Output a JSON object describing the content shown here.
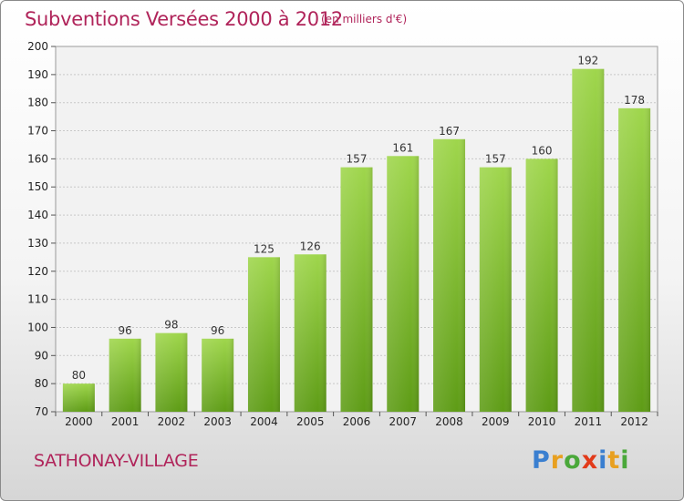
{
  "header": {
    "title": "Subventions Versées 2000 à 2012",
    "unit": "(en milliers d'€)"
  },
  "footer": {
    "city": "SATHONAY-VILLAGE",
    "brand_letters": [
      "P",
      "r",
      "o",
      "x",
      "i",
      "t",
      "i"
    ],
    "brand_colors": [
      "#3a7fd0",
      "#e8a020",
      "#4aa83a",
      "#e23a1a",
      "#3a7fd0",
      "#e8a020",
      "#4aa83a"
    ]
  },
  "colors": {
    "bar_light": "#9fd64c",
    "bar_dark": "#5e9c16",
    "title": "#b0245a",
    "grid": "#c8c8c8"
  },
  "chart_data": {
    "type": "bar",
    "title": "Subventions Versées 2000 à 2012",
    "subtitle": "(en milliers d'€)",
    "categories": [
      "2000",
      "2001",
      "2002",
      "2003",
      "2004",
      "2005",
      "2006",
      "2007",
      "2008",
      "2009",
      "2010",
      "2011",
      "2012"
    ],
    "values": [
      80,
      96,
      98,
      96,
      125,
      126,
      157,
      161,
      167,
      157,
      160,
      192,
      178
    ],
    "data_labels": [
      "80",
      "96",
      "98",
      "96",
      "125",
      "126",
      "157",
      "161",
      "167",
      "157",
      "160",
      "192",
      "178"
    ],
    "ylim": [
      70,
      200
    ],
    "yticks": [
      70,
      80,
      90,
      100,
      110,
      120,
      130,
      140,
      150,
      160,
      170,
      180,
      190,
      200
    ],
    "xlabel": "",
    "ylabel": "",
    "grid": true,
    "legend": "none"
  }
}
